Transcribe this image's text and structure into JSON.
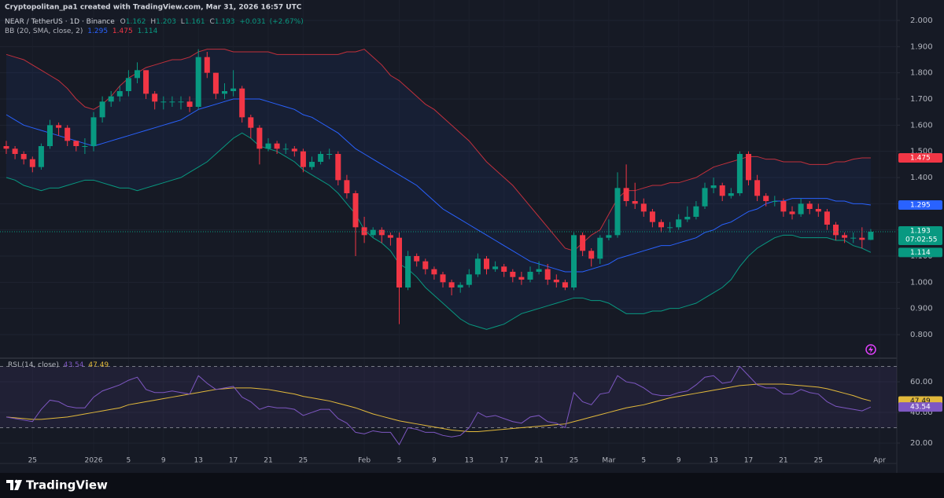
{
  "header": {
    "credit": "Cryptopolitan_pa1 created with TradingView.com, Mar 31, 2026 16:57 UTC",
    "logo": "TradingView"
  },
  "chart_data": [
    {
      "type": "candlestick",
      "symbol": "NEAR / TetherUS · 1D · Binance",
      "ohlc_labels": [
        "O",
        "H",
        "L",
        "C"
      ],
      "change": "+0.031",
      "change_pct": "(+2.67%)",
      "countdown": "07:02:55",
      "up_color": "#089981",
      "down_color": "#f23645",
      "categories": [
        null,
        null,
        null,
        "25",
        null,
        null,
        null,
        null,
        null,
        null,
        "2026",
        null,
        null,
        null,
        "5",
        null,
        null,
        null,
        "9",
        null,
        null,
        null,
        "13",
        null,
        null,
        null,
        "17",
        null,
        null,
        null,
        "21",
        null,
        null,
        null,
        "25",
        null,
        null,
        null,
        null,
        null,
        null,
        "Feb",
        null,
        null,
        null,
        "5",
        null,
        null,
        null,
        "9",
        null,
        null,
        null,
        "13",
        null,
        null,
        null,
        "17",
        null,
        null,
        null,
        "21",
        null,
        null,
        null,
        "25",
        null,
        null,
        null,
        "Mar",
        null,
        null,
        null,
        "5",
        null,
        null,
        null,
        "9",
        null,
        null,
        null,
        "13",
        null,
        null,
        null,
        "17",
        null,
        null,
        null,
        "21",
        null,
        null,
        null,
        "25",
        null,
        null,
        null,
        null,
        null,
        null,
        "Apr"
      ],
      "open": [
        1.52,
        1.51,
        1.49,
        1.47,
        1.44,
        1.52,
        1.6,
        1.59,
        1.54,
        1.52,
        1.52,
        1.63,
        1.69,
        1.71,
        1.73,
        1.78,
        1.81,
        1.72,
        1.69,
        1.69,
        1.69,
        1.69,
        1.67,
        1.86,
        1.8,
        1.72,
        1.73,
        1.74,
        1.63,
        1.59,
        1.51,
        1.53,
        1.51,
        1.51,
        1.5,
        1.44,
        1.46,
        1.49,
        1.49,
        1.39,
        1.34,
        1.21,
        1.18,
        1.2,
        1.18,
        1.17,
        0.98,
        1.1,
        1.08,
        1.05,
        1.03,
        1.0,
        0.98,
        0.99,
        1.03,
        1.09,
        1.05,
        1.06,
        1.04,
        1.02,
        1.01,
        1.04,
        1.05,
        1.01,
        1.0,
        0.98,
        1.18,
        1.12,
        1.09,
        1.17,
        1.18,
        1.36,
        1.31,
        1.3,
        1.27,
        1.23,
        1.21,
        1.21,
        1.24,
        1.25,
        1.29,
        1.36,
        1.37,
        1.33,
        1.34,
        1.49,
        1.39,
        1.33,
        1.31,
        1.31,
        1.27,
        1.26,
        1.3,
        1.28,
        1.27,
        1.22,
        1.18,
        1.17,
        1.17,
        1.162,
        null
      ],
      "high": [
        1.54,
        1.52,
        1.5,
        1.48,
        1.53,
        1.62,
        1.61,
        1.6,
        1.54,
        1.55,
        1.65,
        1.71,
        1.73,
        1.75,
        1.81,
        1.84,
        1.81,
        1.73,
        1.71,
        1.71,
        1.71,
        1.71,
        1.89,
        1.88,
        1.8,
        1.76,
        1.81,
        1.75,
        1.64,
        1.6,
        1.55,
        1.54,
        1.53,
        1.52,
        1.51,
        1.48,
        1.5,
        1.51,
        1.5,
        1.41,
        1.35,
        1.25,
        1.21,
        1.21,
        1.19,
        1.19,
        1.12,
        1.11,
        1.09,
        1.06,
        1.04,
        1.01,
        1.0,
        1.05,
        1.11,
        1.1,
        1.08,
        1.07,
        1.05,
        1.04,
        1.06,
        1.08,
        1.07,
        1.03,
        1.01,
        1.19,
        1.19,
        1.13,
        1.18,
        1.24,
        1.42,
        1.45,
        1.38,
        1.32,
        1.28,
        1.24,
        1.23,
        1.26,
        1.29,
        1.31,
        1.38,
        1.4,
        1.38,
        1.36,
        1.5,
        1.5,
        1.41,
        1.34,
        1.33,
        1.32,
        1.29,
        1.32,
        1.31,
        1.3,
        1.28,
        1.23,
        1.19,
        1.19,
        1.21,
        1.203,
        null
      ],
      "low": [
        1.49,
        1.47,
        1.45,
        1.42,
        1.43,
        1.51,
        1.56,
        1.52,
        1.5,
        1.49,
        1.5,
        1.61,
        1.67,
        1.69,
        1.71,
        1.76,
        1.7,
        1.66,
        1.66,
        1.67,
        1.66,
        1.65,
        1.66,
        1.78,
        1.7,
        1.7,
        1.71,
        1.61,
        1.55,
        1.45,
        1.5,
        1.49,
        1.49,
        1.48,
        1.42,
        1.43,
        1.45,
        1.47,
        1.37,
        1.32,
        1.1,
        1.15,
        1.17,
        1.15,
        1.14,
        0.84,
        0.97,
        1.06,
        1.03,
        1.01,
        0.98,
        0.95,
        0.96,
        0.98,
        1.02,
        1.03,
        1.04,
        1.02,
        1.0,
        0.99,
        1.0,
        1.03,
        0.99,
        0.98,
        0.97,
        0.97,
        1.1,
        1.06,
        1.07,
        1.16,
        1.17,
        1.29,
        1.28,
        1.25,
        1.21,
        1.19,
        1.19,
        1.2,
        1.23,
        1.24,
        1.28,
        1.34,
        1.31,
        1.32,
        1.33,
        1.37,
        1.31,
        1.29,
        1.29,
        1.25,
        1.24,
        1.25,
        1.26,
        1.25,
        1.2,
        1.16,
        1.15,
        1.15,
        1.13,
        1.161,
        null
      ],
      "close": [
        1.51,
        1.49,
        1.47,
        1.44,
        1.52,
        1.6,
        1.59,
        1.54,
        1.52,
        1.52,
        1.63,
        1.69,
        1.71,
        1.73,
        1.78,
        1.81,
        1.72,
        1.69,
        1.69,
        1.69,
        1.69,
        1.67,
        1.86,
        1.8,
        1.72,
        1.73,
        1.74,
        1.63,
        1.59,
        1.51,
        1.53,
        1.51,
        1.51,
        1.5,
        1.44,
        1.46,
        1.49,
        1.49,
        1.39,
        1.34,
        1.21,
        1.18,
        1.2,
        1.18,
        1.17,
        0.98,
        1.1,
        1.08,
        1.05,
        1.03,
        1.0,
        0.98,
        0.99,
        1.03,
        1.09,
        1.05,
        1.06,
        1.04,
        1.02,
        1.01,
        1.04,
        1.05,
        1.01,
        1.0,
        0.98,
        1.18,
        1.12,
        1.09,
        1.17,
        1.18,
        1.36,
        1.31,
        1.3,
        1.27,
        1.23,
        1.21,
        1.21,
        1.24,
        1.25,
        1.29,
        1.36,
        1.37,
        1.33,
        1.34,
        1.49,
        1.39,
        1.33,
        1.31,
        1.31,
        1.27,
        1.26,
        1.3,
        1.28,
        1.27,
        1.22,
        1.18,
        1.17,
        1.17,
        1.162,
        1.193,
        null
      ],
      "bands": {
        "label": "BB (20, SMA, close, 2)",
        "upper": {
          "color": "#c2303c",
          "values": [
            1.87,
            1.86,
            1.85,
            1.83,
            1.81,
            1.79,
            1.77,
            1.74,
            1.7,
            1.67,
            1.66,
            1.68,
            1.71,
            1.75,
            1.78,
            1.8,
            1.82,
            1.83,
            1.84,
            1.85,
            1.85,
            1.86,
            1.88,
            1.89,
            1.89,
            1.89,
            1.88,
            1.88,
            1.88,
            1.88,
            1.88,
            1.87,
            1.87,
            1.87,
            1.87,
            1.87,
            1.87,
            1.87,
            1.87,
            1.88,
            1.88,
            1.89,
            1.86,
            1.83,
            1.79,
            1.77,
            1.74,
            1.71,
            1.68,
            1.66,
            1.63,
            1.6,
            1.57,
            1.54,
            1.5,
            1.46,
            1.43,
            1.4,
            1.37,
            1.33,
            1.29,
            1.25,
            1.21,
            1.17,
            1.13,
            1.12,
            1.15,
            1.18,
            1.2,
            1.26,
            1.32,
            1.35,
            1.35,
            1.36,
            1.37,
            1.37,
            1.38,
            1.38,
            1.39,
            1.4,
            1.42,
            1.44,
            1.45,
            1.46,
            1.47,
            1.48,
            1.48,
            1.47,
            1.47,
            1.46,
            1.46,
            1.46,
            1.45,
            1.45,
            1.45,
            1.46,
            1.46,
            1.47,
            1.475,
            1.475,
            null
          ]
        },
        "middle": {
          "color": "#2962ff",
          "values": [
            1.64,
            1.62,
            1.6,
            1.59,
            1.58,
            1.57,
            1.56,
            1.55,
            1.54,
            1.53,
            1.52,
            1.53,
            1.54,
            1.55,
            1.56,
            1.57,
            1.58,
            1.59,
            1.6,
            1.61,
            1.62,
            1.64,
            1.66,
            1.67,
            1.68,
            1.69,
            1.7,
            1.7,
            1.7,
            1.7,
            1.69,
            1.68,
            1.67,
            1.66,
            1.64,
            1.63,
            1.61,
            1.59,
            1.57,
            1.54,
            1.51,
            1.49,
            1.47,
            1.45,
            1.43,
            1.41,
            1.39,
            1.37,
            1.34,
            1.31,
            1.28,
            1.26,
            1.24,
            1.22,
            1.2,
            1.18,
            1.16,
            1.14,
            1.12,
            1.1,
            1.08,
            1.07,
            1.06,
            1.05,
            1.04,
            1.04,
            1.04,
            1.05,
            1.06,
            1.07,
            1.09,
            1.1,
            1.11,
            1.12,
            1.13,
            1.14,
            1.14,
            1.15,
            1.16,
            1.17,
            1.19,
            1.2,
            1.22,
            1.23,
            1.25,
            1.27,
            1.28,
            1.3,
            1.31,
            1.31,
            1.32,
            1.32,
            1.32,
            1.32,
            1.32,
            1.31,
            1.31,
            1.3,
            1.3,
            1.295,
            null
          ]
        },
        "lower": {
          "color": "#089981",
          "values": [
            1.4,
            1.39,
            1.37,
            1.36,
            1.35,
            1.36,
            1.36,
            1.37,
            1.38,
            1.39,
            1.39,
            1.38,
            1.37,
            1.36,
            1.36,
            1.35,
            1.36,
            1.37,
            1.38,
            1.39,
            1.4,
            1.42,
            1.44,
            1.46,
            1.49,
            1.52,
            1.55,
            1.57,
            1.55,
            1.52,
            1.51,
            1.5,
            1.48,
            1.46,
            1.43,
            1.41,
            1.39,
            1.37,
            1.34,
            1.3,
            1.26,
            1.2,
            1.17,
            1.15,
            1.12,
            1.07,
            1.05,
            1.02,
            0.98,
            0.95,
            0.92,
            0.89,
            0.86,
            0.84,
            0.83,
            0.82,
            0.83,
            0.84,
            0.86,
            0.88,
            0.89,
            0.9,
            0.91,
            0.92,
            0.93,
            0.94,
            0.94,
            0.93,
            0.93,
            0.92,
            0.9,
            0.88,
            0.88,
            0.88,
            0.89,
            0.89,
            0.9,
            0.9,
            0.91,
            0.92,
            0.94,
            0.96,
            0.98,
            1.01,
            1.06,
            1.1,
            1.13,
            1.15,
            1.17,
            1.18,
            1.18,
            1.17,
            1.17,
            1.17,
            1.17,
            1.16,
            1.16,
            1.14,
            1.13,
            1.114,
            null
          ]
        }
      },
      "ylim": [
        0.713,
        2.078
      ],
      "yticks": [
        {
          "value": 2.0,
          "label": "2.000"
        },
        {
          "value": 1.9,
          "label": "1.900"
        },
        {
          "value": 1.8,
          "label": "1.800"
        },
        {
          "value": 1.7,
          "label": "1.700"
        },
        {
          "value": 1.6,
          "label": "1.600"
        },
        {
          "value": 1.5,
          "label": "1.500"
        },
        {
          "value": 1.4,
          "label": "1.400"
        },
        {
          "value": 1.3,
          "label": "1.300"
        },
        {
          "value": 1.2,
          "label": "1.200"
        },
        {
          "value": 1.1,
          "label": "1.100"
        },
        {
          "value": 1.0,
          "label": "1.000"
        },
        {
          "value": 0.9,
          "label": "0.900"
        },
        {
          "value": 0.8,
          "label": "0.800"
        }
      ],
      "grid": true
    },
    {
      "type": "line",
      "label": "RSI (14, close)",
      "rsi": {
        "color": "#7e57c2",
        "values": [
          37,
          36,
          35,
          34,
          42,
          48,
          47,
          44,
          43,
          43,
          50,
          54,
          56,
          58,
          61,
          63,
          55,
          53,
          53,
          54,
          53,
          52,
          64,
          59,
          55,
          56,
          57,
          50,
          47,
          42,
          44,
          43,
          43,
          42,
          38,
          40,
          42,
          42,
          36,
          33,
          27,
          26,
          28,
          27,
          27,
          19,
          30,
          29,
          27,
          27,
          25,
          24,
          25,
          30,
          40,
          37,
          38,
          36,
          34,
          33,
          37,
          38,
          34,
          33,
          30,
          53,
          47,
          45,
          52,
          53,
          64,
          60,
          59,
          56,
          52,
          51,
          51,
          53,
          54,
          58,
          63,
          64,
          59,
          60,
          70,
          64,
          58,
          56,
          56,
          52,
          52,
          55,
          53,
          52,
          47,
          44,
          43,
          42,
          41,
          43.54,
          null
        ]
      },
      "ma": {
        "color": "#e2b93b",
        "values": [
          37,
          36.5,
          36,
          35.5,
          35.5,
          36,
          36.5,
          37,
          38,
          39,
          40,
          41,
          42,
          43,
          45,
          46,
          47,
          48,
          49,
          50,
          51,
          52,
          53,
          54,
          55,
          55.5,
          56,
          56,
          56,
          55.5,
          55,
          54,
          53,
          52,
          50.5,
          49.5,
          48.5,
          47.5,
          46,
          44.5,
          43,
          41,
          39,
          37.5,
          36,
          34.5,
          33.5,
          32.5,
          31.5,
          30.5,
          29.5,
          28.5,
          28,
          27.5,
          27.5,
          28,
          28.5,
          29,
          29.5,
          30,
          30.5,
          31,
          31.5,
          32,
          32.5,
          34,
          35.5,
          37,
          38.5,
          40,
          41.5,
          43,
          44,
          45,
          46.5,
          48,
          49.5,
          50.5,
          51.5,
          52.5,
          53.5,
          54.5,
          55.5,
          56.5,
          57.5,
          58,
          58.5,
          58.5,
          58.5,
          58.5,
          58,
          57.5,
          57,
          56.5,
          55.5,
          54,
          52.5,
          51,
          49,
          47.49,
          null
        ]
      },
      "bands": [
        30,
        70
      ],
      "ylim": [
        6.7,
        74.9
      ],
      "yticks": [
        {
          "value": 60,
          "label": "60.00"
        },
        {
          "value": 40,
          "label": "40.00"
        },
        {
          "value": 20,
          "label": "20.00"
        }
      ],
      "grid": true
    }
  ]
}
